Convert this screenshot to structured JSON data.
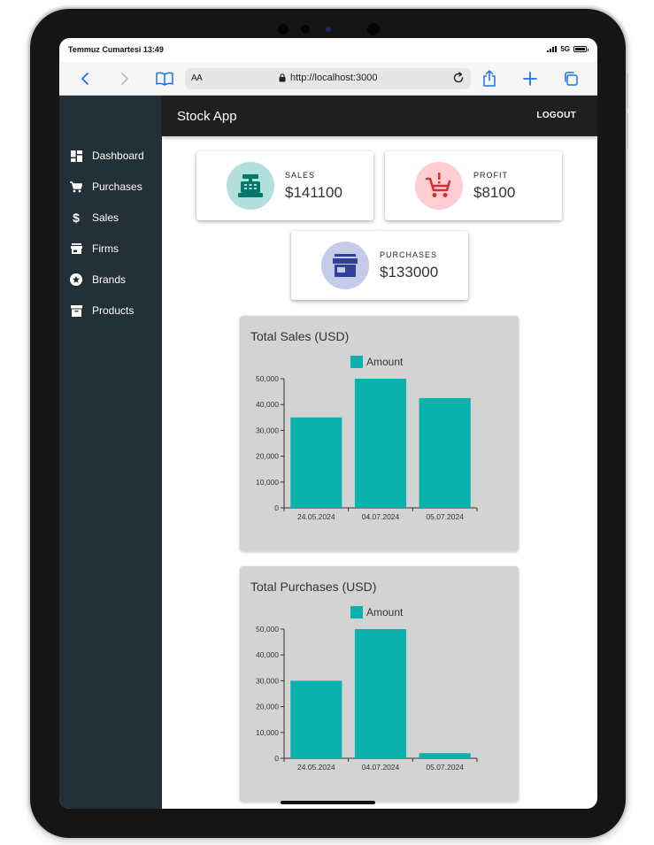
{
  "status_bar": {
    "time": "Temmuz Cumartesi 13:49",
    "network": "5G"
  },
  "browser": {
    "aa_label": "AA",
    "url": "http://localhost:3000"
  },
  "app": {
    "title": "Stock App",
    "logout_label": "LOGOUT"
  },
  "sidebar": {
    "items": [
      {
        "label": "Dashboard",
        "icon": "dashboard-icon"
      },
      {
        "label": "Purchases",
        "icon": "cart-icon"
      },
      {
        "label": "Sales",
        "icon": "dollar-icon"
      },
      {
        "label": "Firms",
        "icon": "store-icon"
      },
      {
        "label": "Brands",
        "icon": "star-badge-icon"
      },
      {
        "label": "Products",
        "icon": "inventory-icon"
      }
    ]
  },
  "kpis": {
    "sales": {
      "label": "SALES",
      "value": "$141100",
      "icon": "cash-register-icon",
      "bg": "#b2dfdb",
      "fg": "#00796b"
    },
    "profit": {
      "label": "PROFIT",
      "value": "$8100",
      "icon": "cart-alert-icon",
      "bg": "#ffcdd2",
      "fg": "#d32f2f"
    },
    "purchases": {
      "label": "PURCHASES",
      "value": "$133000",
      "icon": "storefront-icon",
      "bg": "#c5cae9",
      "fg": "#303f9f"
    }
  },
  "colors": {
    "bar": "#0ab1ad",
    "chart_bg": "#d3d3d3",
    "sidebar_bg": "#243038",
    "appbar_bg": "#1f1f1f"
  },
  "chart_data": [
    {
      "type": "bar",
      "title": "Total Sales (USD)",
      "categories": [
        "24.05.2024",
        "04.07.2024",
        "05.07.2024"
      ],
      "series": [
        {
          "name": "Amount",
          "values": [
            35000,
            50000,
            42500
          ]
        }
      ],
      "ylim": [
        0,
        50000
      ],
      "yticks": [
        "0",
        "10,000",
        "20,000",
        "30,000",
        "40,000",
        "50,000"
      ],
      "legend": "top-center"
    },
    {
      "type": "bar",
      "title": "Total Purchases (USD)",
      "categories": [
        "24.05.2024",
        "04.07.2024",
        "05.07.2024"
      ],
      "series": [
        {
          "name": "Amount",
          "values": [
            30000,
            50000,
            2000
          ]
        }
      ],
      "ylim": [
        0,
        50000
      ],
      "yticks": [
        "0",
        "10,000",
        "20,000",
        "30,000",
        "40,000",
        "50,000"
      ],
      "legend": "top-center"
    }
  ]
}
